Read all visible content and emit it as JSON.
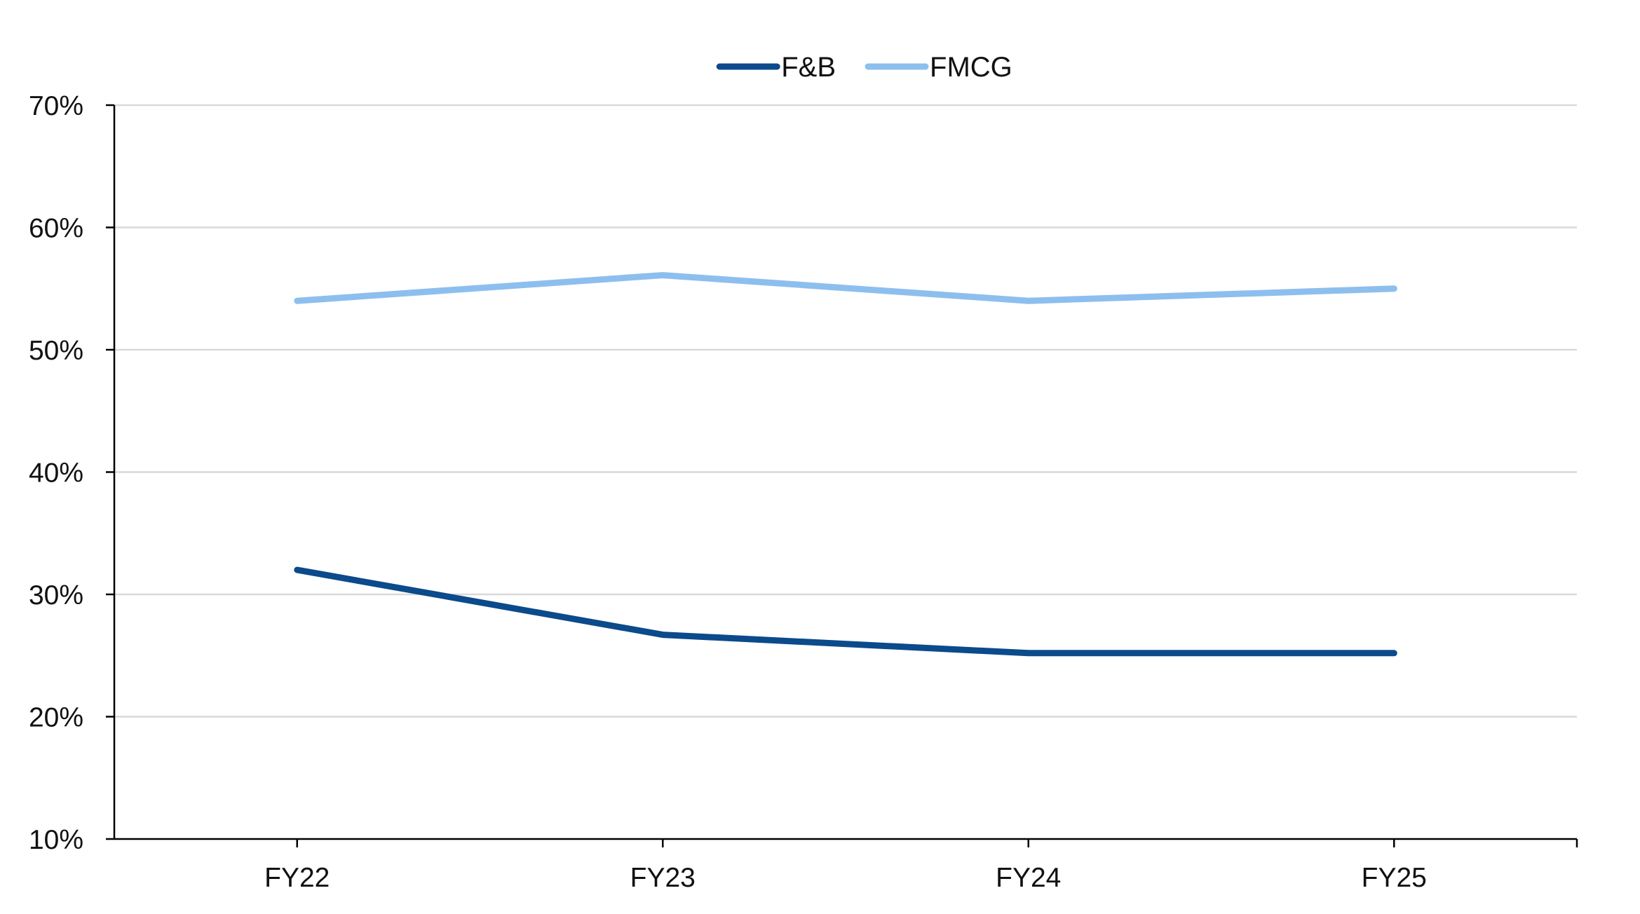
{
  "chart_data": {
    "type": "line",
    "title": "",
    "xlabel": "",
    "ylabel": "",
    "categories": [
      "FY22",
      "FY23",
      "FY24",
      "FY25"
    ],
    "series": [
      {
        "name": "F&B",
        "values": [
          32.0,
          26.7,
          25.2,
          25.2
        ],
        "color": "#0b4a8b"
      },
      {
        "name": "FMCG",
        "values": [
          54.0,
          56.1,
          54.0,
          55.0
        ],
        "color": "#8dbfee"
      }
    ],
    "ylim": [
      10,
      70
    ],
    "yticks": [
      "10%",
      "20%",
      "30%",
      "40%",
      "50%",
      "60%",
      "70%"
    ],
    "grid": true,
    "legend_position": "top-center",
    "axis_color": "#000000",
    "grid_color": "#d9d9d9"
  }
}
